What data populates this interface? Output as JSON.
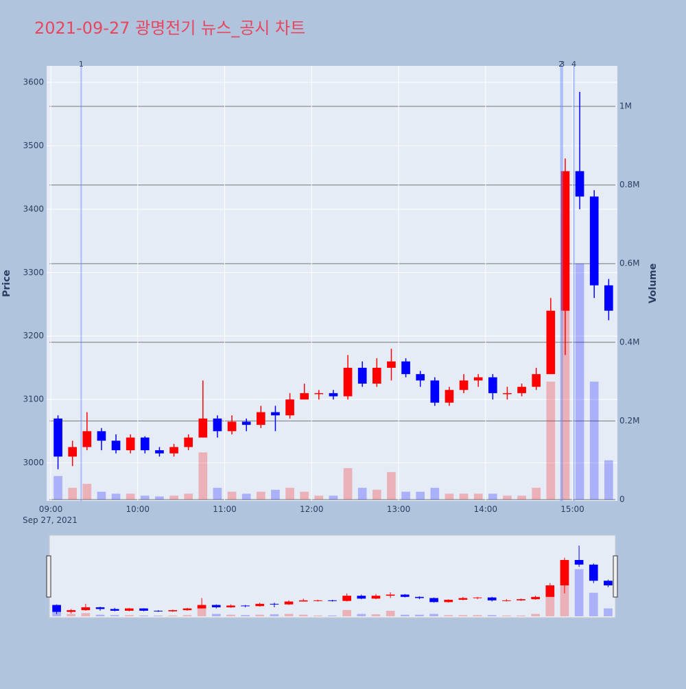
{
  "chart_data": {
    "type": "candlestick",
    "title": "2021-09-27 광명전기 뉴스_공시 차트",
    "y_label": "Price",
    "y2_label": "Volume",
    "x_date_label": "Sep 27, 2021",
    "x": [
      "09:00",
      "09:10",
      "09:20",
      "09:30",
      "09:40",
      "09:50",
      "10:00",
      "10:10",
      "10:20",
      "10:30",
      "10:40",
      "10:50",
      "11:00",
      "11:10",
      "11:20",
      "11:30",
      "11:40",
      "11:50",
      "12:00",
      "12:10",
      "12:20",
      "12:30",
      "12:40",
      "12:50",
      "13:00",
      "13:10",
      "13:20",
      "13:30",
      "13:40",
      "13:50",
      "14:00",
      "14:10",
      "14:20",
      "14:30",
      "14:40",
      "14:50",
      "15:00",
      "15:10",
      "15:20"
    ],
    "open": [
      3070,
      3010,
      3025,
      3050,
      3035,
      3020,
      3040,
      3020,
      3015,
      3025,
      3040,
      3070,
      3050,
      3065,
      3060,
      3080,
      3075,
      3100,
      3110,
      3110,
      3105,
      3150,
      3125,
      3150,
      3160,
      3140,
      3130,
      3095,
      3115,
      3130,
      3135,
      3110,
      3110,
      3120,
      3140,
      3240,
      3460,
      3420,
      3280
    ],
    "high": [
      3075,
      3035,
      3080,
      3055,
      3045,
      3045,
      3042,
      3025,
      3030,
      3045,
      3130,
      3075,
      3075,
      3070,
      3090,
      3090,
      3110,
      3125,
      3115,
      3115,
      3170,
      3160,
      3165,
      3180,
      3165,
      3145,
      3135,
      3120,
      3140,
      3140,
      3140,
      3120,
      3125,
      3150,
      3260,
      3480,
      3585,
      3430,
      3290
    ],
    "low": [
      2990,
      2995,
      3020,
      3020,
      3015,
      3015,
      3015,
      3010,
      3010,
      3020,
      3040,
      3040,
      3045,
      3050,
      3055,
      3050,
      3070,
      3100,
      3100,
      3100,
      3100,
      3120,
      3120,
      3130,
      3135,
      3120,
      3090,
      3090,
      3110,
      3120,
      3100,
      3100,
      3105,
      3115,
      3140,
      3170,
      3400,
      3260,
      3225
    ],
    "close": [
      3010,
      3025,
      3050,
      3035,
      3020,
      3040,
      3020,
      3015,
      3025,
      3040,
      3070,
      3050,
      3065,
      3060,
      3080,
      3075,
      3100,
      3110,
      3110,
      3105,
      3150,
      3125,
      3150,
      3160,
      3140,
      3130,
      3095,
      3115,
      3130,
      3135,
      3110,
      3110,
      3120,
      3140,
      3240,
      3460,
      3420,
      3280,
      3240
    ],
    "volume": [
      60000,
      30000,
      40000,
      20000,
      15000,
      15000,
      10000,
      8000,
      10000,
      15000,
      120000,
      30000,
      20000,
      15000,
      20000,
      25000,
      30000,
      20000,
      10000,
      10000,
      80000,
      30000,
      25000,
      70000,
      20000,
      20000,
      30000,
      15000,
      15000,
      15000,
      15000,
      10000,
      10000,
      30000,
      300000,
      700000,
      600000,
      300000,
      100000
    ],
    "increasing_color": "#ff0000",
    "decreasing_color": "#0000ff",
    "xlim": [
      "09:00",
      "15:31"
    ],
    "xticks": [
      "09:00",
      "10:00",
      "11:00",
      "12:00",
      "13:00",
      "14:00",
      "15:00"
    ],
    "ylim": [
      2940,
      3626
    ],
    "yticks": [
      3000,
      3100,
      3200,
      3300,
      3400,
      3500,
      3600
    ],
    "y2lim": [
      0,
      1103000
    ],
    "y2ticks": [
      0,
      {
        "value": 200000,
        "label": "0.2M"
      },
      {
        "value": 400000,
        "label": "0.4M"
      },
      {
        "value": 600000,
        "label": "0.6M"
      },
      {
        "value": 800000,
        "label": "0.8M"
      },
      {
        "value": 1000000,
        "label": "1M"
      }
    ],
    "events": [
      {
        "x": "09:21",
        "label": "1"
      },
      {
        "x": "14:52",
        "label": "2"
      },
      {
        "x": "14:53",
        "label": "3"
      },
      {
        "x": "15:01",
        "label": "4"
      }
    ],
    "event_color": "#6a8cff"
  }
}
